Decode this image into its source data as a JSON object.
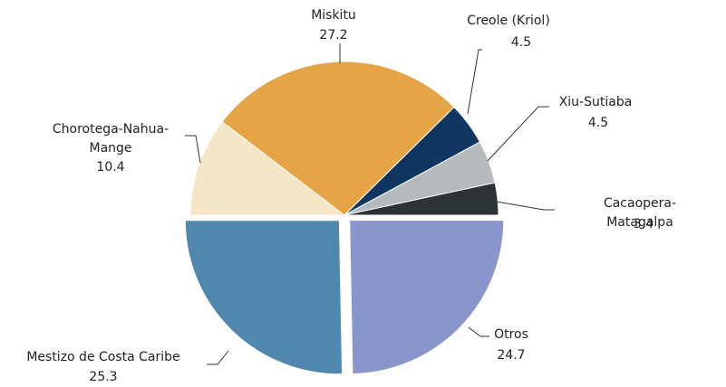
{
  "chart_data": {
    "type": "pie",
    "categories": [
      "Chorotega-Nahua-Mange",
      "Miskitu",
      "Creole (Kriol)",
      "Xiu-Sutiaba",
      "Cacaopera-Matagalpa",
      "Otros",
      "Mestizo de Costa Caribe"
    ],
    "values": [
      10.4,
      27.2,
      4.5,
      4.5,
      3.4,
      24.7,
      25.3
    ],
    "colors": [
      "#f5e6c8",
      "#e5a445",
      "#0e3661",
      "#b5babd",
      "#2d3436",
      "#8896cc",
      "#4f87ae"
    ],
    "exploded": [
      false,
      false,
      false,
      false,
      false,
      true,
      true
    ]
  }
}
